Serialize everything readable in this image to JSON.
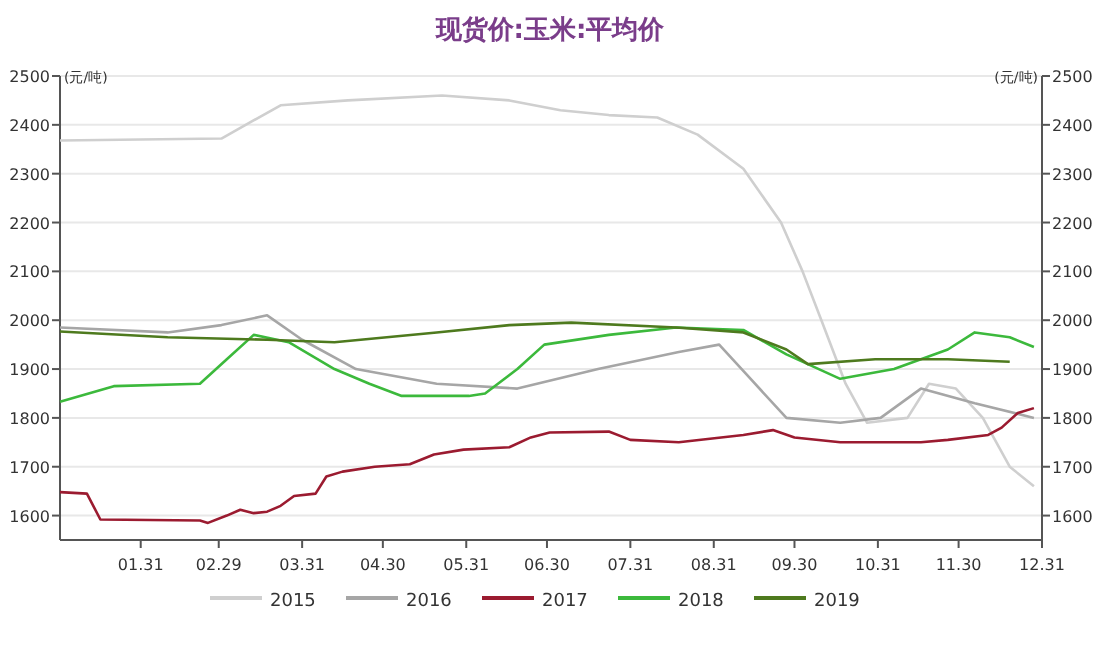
{
  "chart_data": {
    "type": "line",
    "title": "现货价:玉米:平均价",
    "ylabel": "(元/吨)",
    "y2label": "(元/吨)",
    "xlim": [
      "--01-01",
      "--12-31"
    ],
    "xticks": [
      {
        "value": "--01-31",
        "label": "01.31"
      },
      {
        "value": "--02-29",
        "label": "02.29"
      },
      {
        "value": "--03-31",
        "label": "03.31"
      },
      {
        "value": "--04-30",
        "label": "04.30"
      },
      {
        "value": "--05-31",
        "label": "05.31"
      },
      {
        "value": "--06-30",
        "label": "06.30"
      },
      {
        "value": "--07-31",
        "label": "07.31"
      },
      {
        "value": "--08-31",
        "label": "08.31"
      },
      {
        "value": "--09-30",
        "label": "09.30"
      },
      {
        "value": "--10-31",
        "label": "10.31"
      },
      {
        "value": "--11-30",
        "label": "11.30"
      },
      {
        "value": "--12-31",
        "label": "12.31"
      }
    ],
    "ylim": [
      1550,
      2500
    ],
    "yticks": [
      1600,
      1700,
      1800,
      1900,
      2000,
      2100,
      2200,
      2300,
      2400,
      2500
    ],
    "y2lim": [
      1550,
      2500
    ],
    "y2ticks": [
      1600,
      1700,
      1800,
      1900,
      2000,
      2100,
      2200,
      2300,
      2400,
      2500
    ],
    "grid": "y",
    "legend": "bottom",
    "marker": "none",
    "line_style": "solid",
    "series": [
      {
        "name": "2015",
        "color": "#cfcfcf",
        "x": [
          "--01-01",
          "--03-01",
          "--03-23",
          "--04-17",
          "--05-22",
          "--06-16",
          "--07-05",
          "--07-23",
          "--08-10",
          "--08-25",
          "--09-11",
          "--09-25",
          "--10-03",
          "--10-10",
          "--10-19",
          "--10-27",
          "--11-11",
          "--11-19",
          "--11-29",
          "--12-09",
          "--12-19",
          "--12-28"
        ],
        "values": [
          2368,
          2372,
          2440,
          2450,
          2460,
          2450,
          2430,
          2420,
          2415,
          2380,
          2310,
          2200,
          2100,
          2000,
          1870,
          1790,
          1800,
          1870,
          1860,
          1800,
          1700,
          1660
        ]
      },
      {
        "name": "2016",
        "color": "#a6a6a6",
        "x": [
          "--01-01",
          "--02-10",
          "--03-01",
          "--03-18",
          "--03-31",
          "--04-20",
          "--05-20",
          "--06-19",
          "--07-19",
          "--08-18",
          "--09-02",
          "--09-12",
          "--09-27",
          "--10-17",
          "--11-01",
          "--11-16",
          "--12-06",
          "--12-28"
        ],
        "values": [
          1985,
          1975,
          1990,
          2010,
          1960,
          1900,
          1870,
          1860,
          1900,
          1935,
          1950,
          1890,
          1800,
          1790,
          1800,
          1860,
          1830,
          1800
        ]
      },
      {
        "name": "2017",
        "color": "#9b1b30",
        "x": [
          "--01-01",
          "--01-11",
          "--01-16",
          "--02-22",
          "--02-25",
          "--03-03",
          "--03-08",
          "--03-13",
          "--03-18",
          "--03-23",
          "--03-28",
          "--04-05",
          "--04-09",
          "--04-15",
          "--04-27",
          "--05-10",
          "--05-19",
          "--05-30",
          "--06-16",
          "--06-24",
          "--07-01",
          "--07-23",
          "--07-31",
          "--08-18",
          "--09-11",
          "--09-22",
          "--09-30",
          "--10-17",
          "--11-16",
          "--11-26",
          "--12-11",
          "--12-16",
          "--12-22",
          "--12-28"
        ],
        "values": [
          1648,
          1645,
          1592,
          1590,
          1585,
          1600,
          1612,
          1605,
          1608,
          1620,
          1640,
          1645,
          1680,
          1690,
          1700,
          1705,
          1725,
          1735,
          1740,
          1760,
          1770,
          1772,
          1755,
          1750,
          1765,
          1775,
          1760,
          1750,
          1750,
          1755,
          1765,
          1780,
          1810,
          1820
        ]
      },
      {
        "name": "2018",
        "color": "#3cb93c",
        "x": [
          "--01-01",
          "--01-21",
          "--02-22",
          "--03-03",
          "--03-13",
          "--03-26",
          "--04-12",
          "--04-25",
          "--05-07",
          "--06-01",
          "--06-07",
          "--06-19",
          "--06-29",
          "--07-23",
          "--08-17",
          "--09-11",
          "--09-27",
          "--10-17",
          "--11-06",
          "--11-26",
          "--12-06",
          "--12-19",
          "--12-28"
        ],
        "values": [
          1833,
          1865,
          1870,
          1920,
          1970,
          1955,
          1900,
          1870,
          1845,
          1845,
          1850,
          1900,
          1950,
          1970,
          1985,
          1980,
          1930,
          1880,
          1900,
          1940,
          1975,
          1965,
          1945
        ]
      },
      {
        "name": "2019",
        "color": "#4e7a1e",
        "x": [
          "--01-01",
          "--02-10",
          "--03-18",
          "--04-12",
          "--05-20",
          "--06-16",
          "--07-09",
          "--08-17",
          "--09-11",
          "--09-27",
          "--10-05",
          "--10-30",
          "--11-26",
          "--12-19"
        ],
        "values": [
          1977,
          1965,
          1960,
          1955,
          1975,
          1990,
          1995,
          1985,
          1975,
          1940,
          1910,
          1920,
          1920,
          1915
        ]
      }
    ]
  }
}
